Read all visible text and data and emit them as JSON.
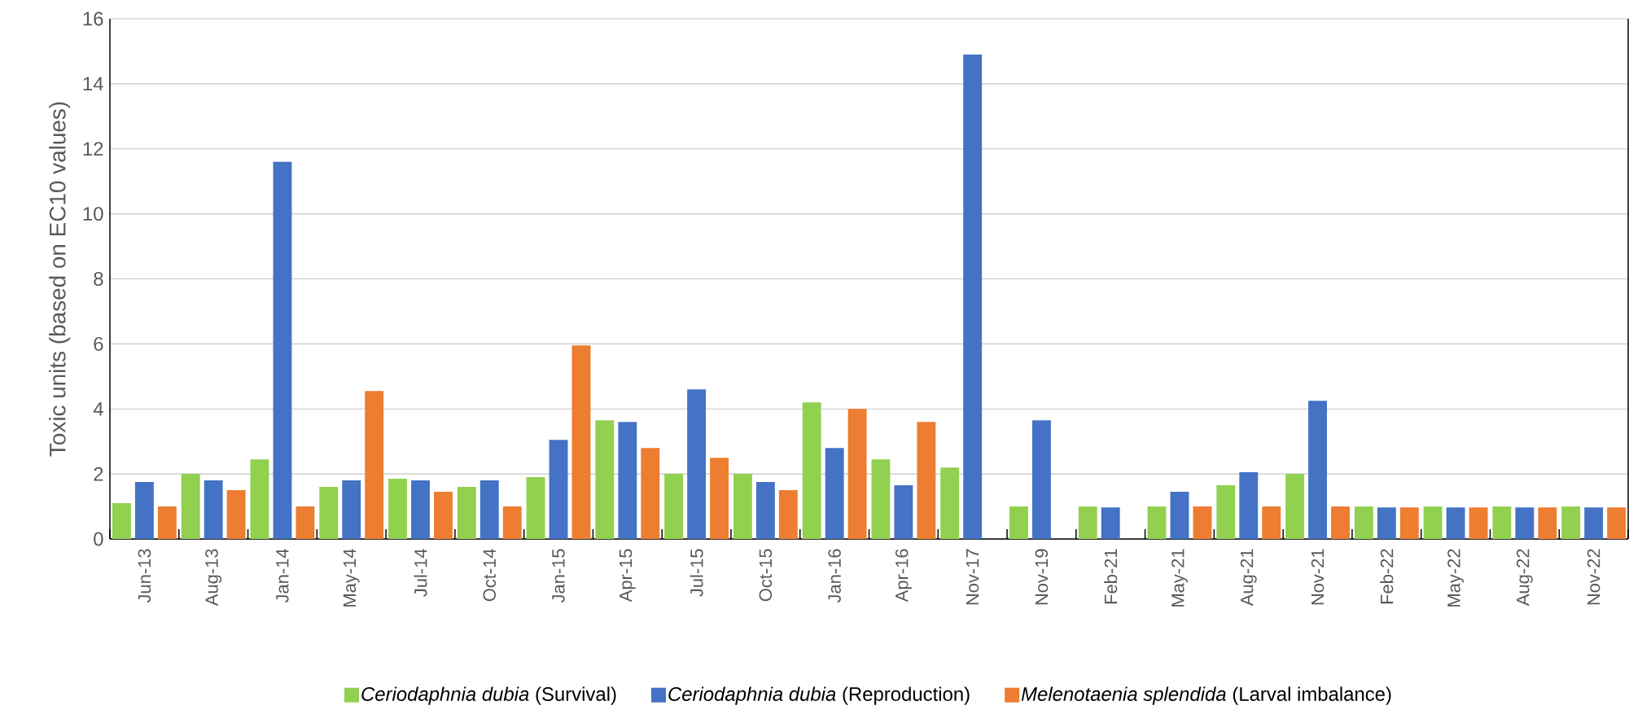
{
  "chart_data": {
    "type": "bar",
    "ylabel": "Toxic units (based on EC10 values)",
    "categories": [
      "Jun-13",
      "Aug-13",
      "Jan-14",
      "May-14",
      "Jul-14",
      "Oct-14",
      "Jan-15",
      "Apr-15",
      "Jul-15",
      "Oct-15",
      "Jan-16",
      "Apr-16",
      "Nov-17",
      "Nov-19",
      "Feb-21",
      "May-21",
      "Aug-21",
      "Nov-21",
      "Feb-22",
      "May-22",
      "Aug-22",
      "Nov-22"
    ],
    "series": [
      {
        "name": "*Ceriodaphnia dubia*  (Survival)",
        "color": "#92d050",
        "values": [
          1.1,
          2.0,
          2.45,
          1.6,
          1.85,
          1.6,
          1.9,
          3.65,
          2.0,
          2.0,
          4.2,
          2.45,
          2.2,
          1.0,
          1.0,
          1.0,
          1.65,
          2.0,
          1.0,
          1.0,
          1.0,
          1.0
        ]
      },
      {
        "name": "*Ceriodaphnia dubia*  (Reproduction)",
        "color": "#4472c4",
        "values": [
          1.75,
          1.8,
          11.6,
          1.8,
          1.8,
          1.8,
          3.05,
          3.6,
          4.6,
          1.75,
          2.8,
          1.65,
          14.9,
          3.65,
          0.97,
          1.45,
          2.05,
          4.25,
          0.97,
          0.97,
          0.97,
          0.97
        ]
      },
      {
        "name": "*Melenotaenia splendida*  (Larval imbalance)",
        "color": "#ed7d31",
        "values": [
          1.0,
          1.5,
          1.0,
          4.55,
          1.45,
          1.0,
          5.95,
          2.8,
          2.5,
          1.5,
          4.0,
          3.6,
          null,
          null,
          null,
          1.0,
          1.0,
          1.0,
          0.97,
          0.97,
          0.97,
          0.97
        ]
      }
    ],
    "ylim": [
      0,
      16
    ],
    "yticks": [
      0,
      2,
      4,
      6,
      8,
      10,
      12,
      14,
      16
    ],
    "grid": "y",
    "legend": "bottom"
  }
}
